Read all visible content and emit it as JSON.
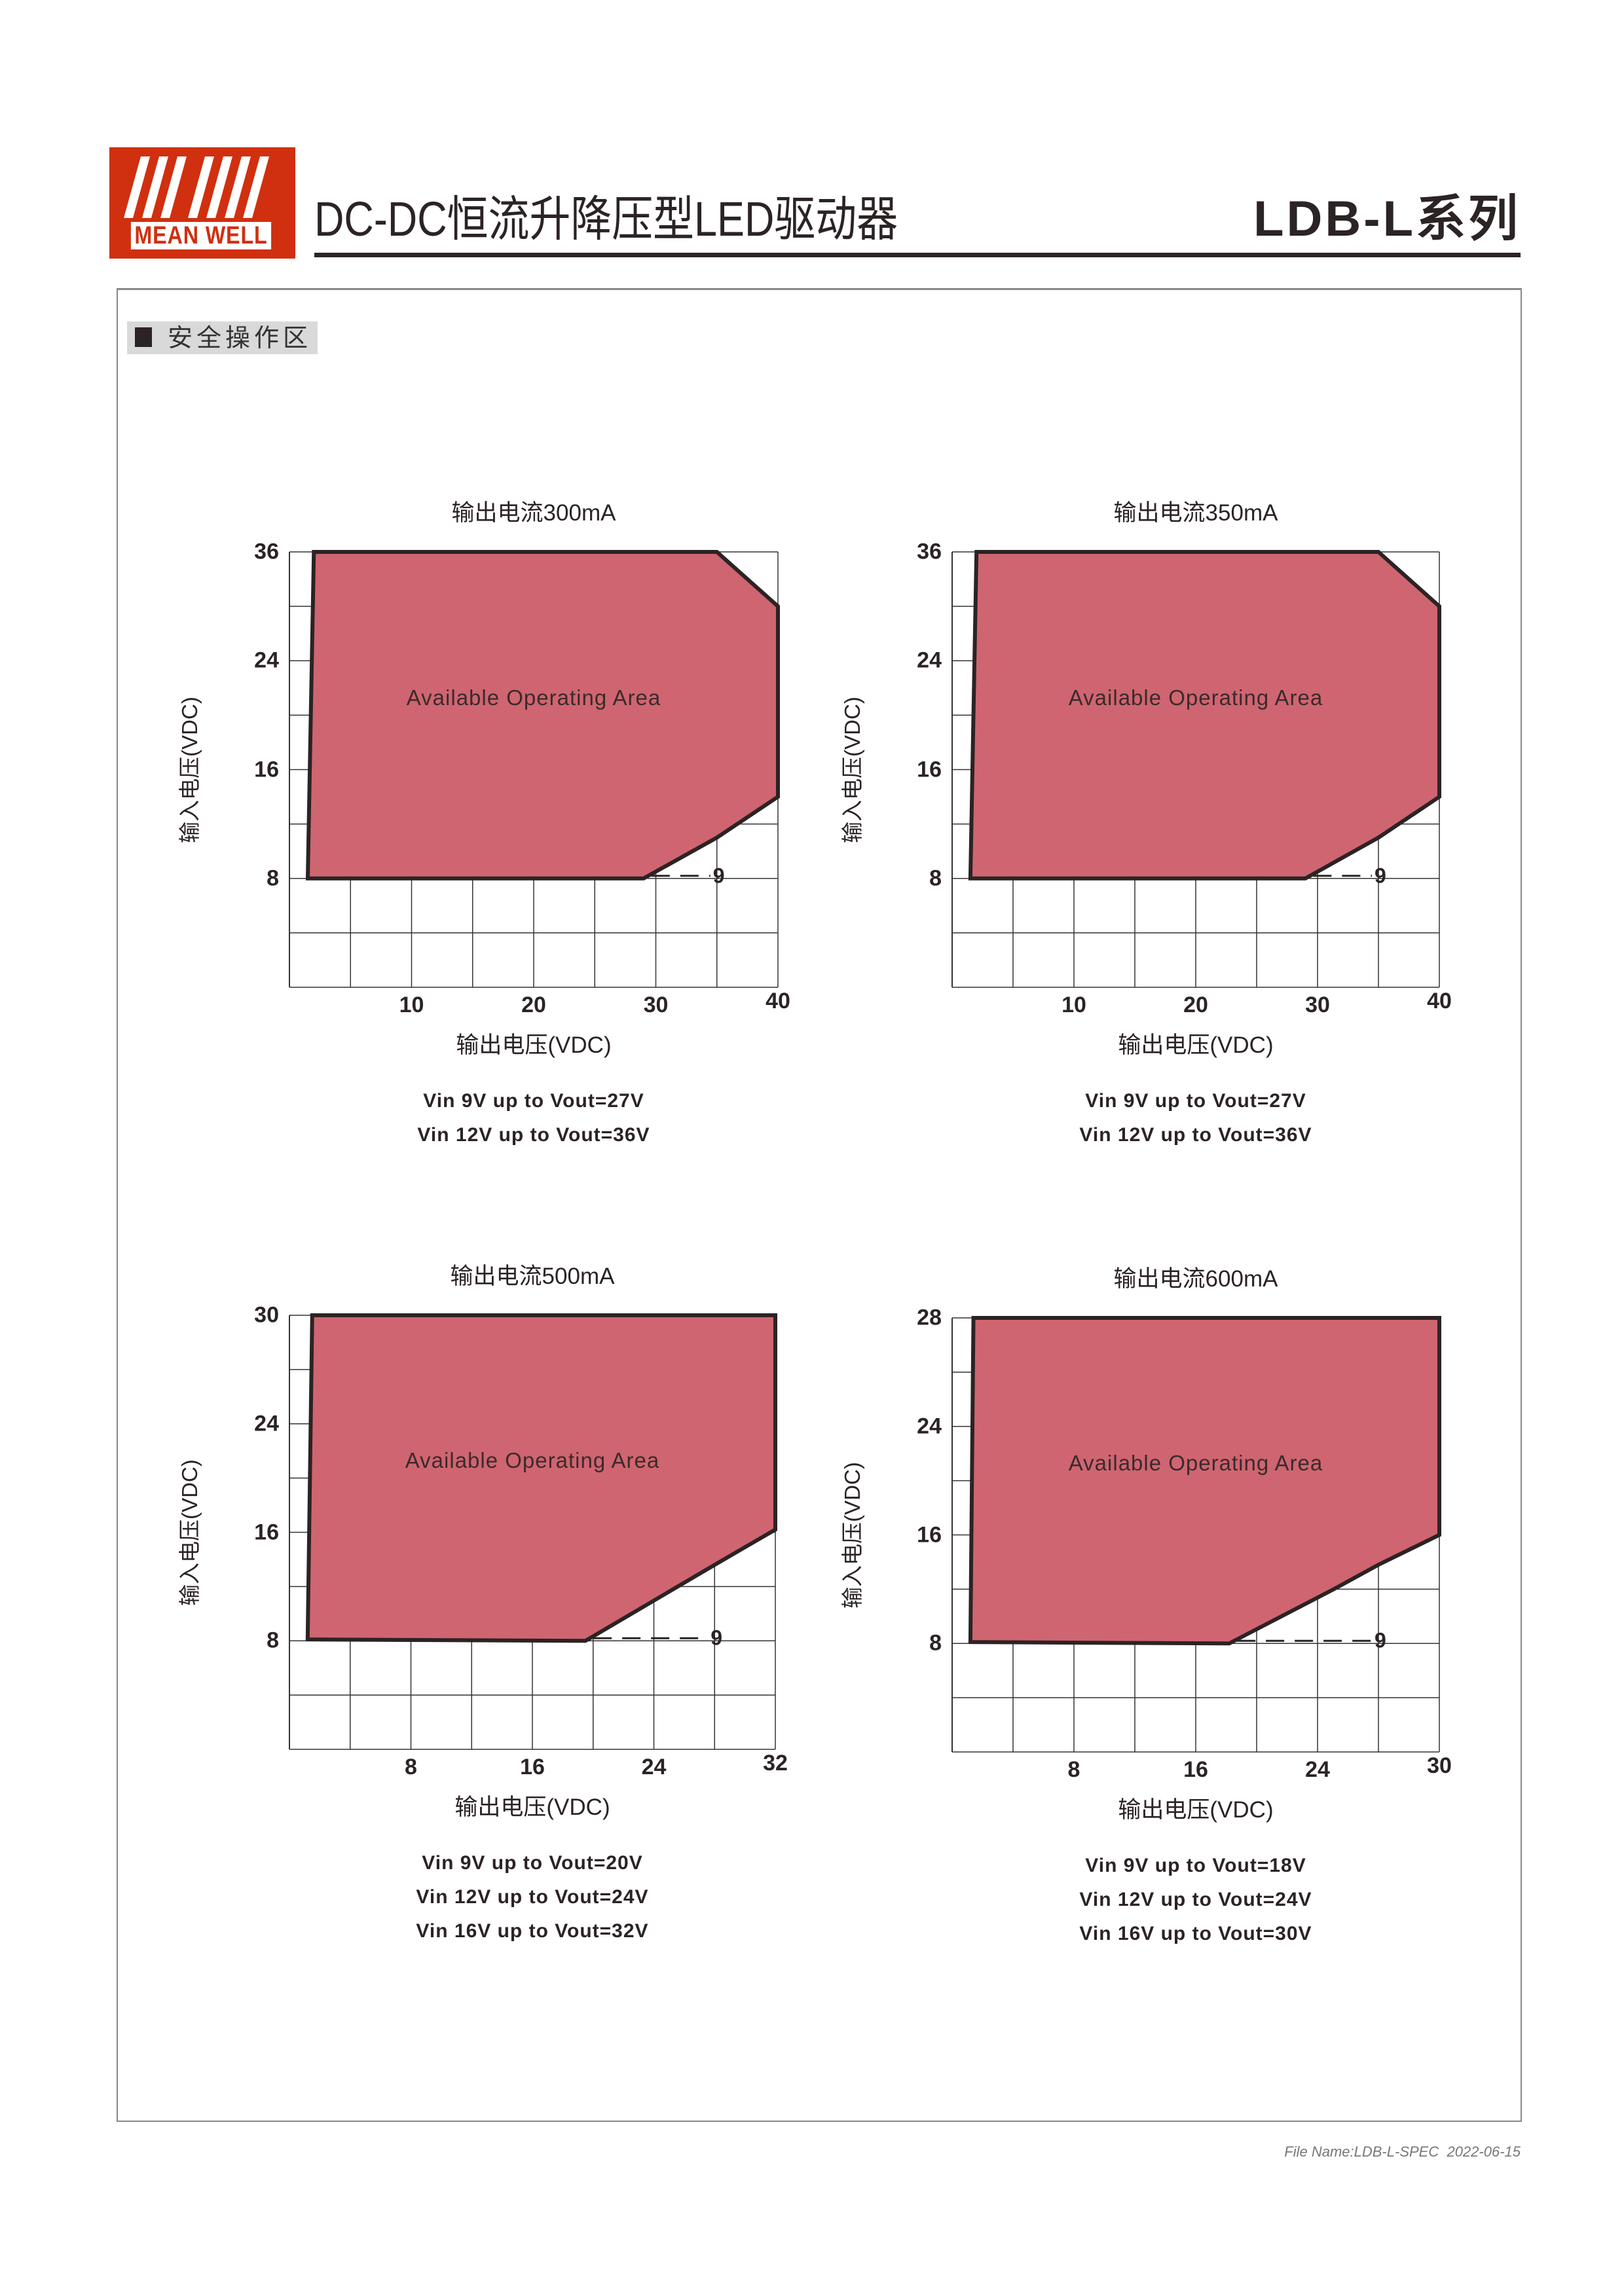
{
  "header": {
    "logo_text": "MEAN WELL",
    "title": "DC-DC恒流升降压型LED驱动器",
    "series": "LDB-L系列"
  },
  "section": {
    "label": "安全操作区"
  },
  "colors": {
    "brand": "#d0300f",
    "area_fill": "#cf6570",
    "outline": "#2b2324"
  },
  "chart_data": [
    {
      "type": "area",
      "title": "输出电流300mA",
      "xlabel": "输出电压(VDC)",
      "ylabel": "输入电压(VDC)",
      "x_ticks": [
        "10",
        "20",
        "30",
        "40"
      ],
      "y_ticks": [
        "8",
        "16",
        "24",
        "36"
      ],
      "xlim": [
        0,
        40
      ],
      "ylim": [
        0,
        36
      ],
      "grid": true,
      "area_label": "Available Operating Area",
      "polygon": [
        [
          2,
          36
        ],
        [
          35,
          36
        ],
        [
          40,
          30
        ],
        [
          40,
          14
        ],
        [
          35,
          11
        ],
        [
          29,
          8
        ],
        [
          1.5,
          8
        ]
      ],
      "annotation": "9",
      "notes": [
        "Vin 9V up to Vout=27V",
        "Vin 12V up to Vout=36V"
      ]
    },
    {
      "type": "area",
      "title": "输出电流350mA",
      "xlabel": "输出电压(VDC)",
      "ylabel": "输入电压(VDC)",
      "x_ticks": [
        "10",
        "20",
        "30",
        "40"
      ],
      "y_ticks": [
        "8",
        "16",
        "24",
        "36"
      ],
      "xlim": [
        0,
        40
      ],
      "ylim": [
        0,
        36
      ],
      "grid": true,
      "area_label": "Available Operating Area",
      "polygon": [
        [
          2,
          36
        ],
        [
          35,
          36
        ],
        [
          40,
          30
        ],
        [
          40,
          14
        ],
        [
          35,
          11
        ],
        [
          29,
          8
        ],
        [
          1.5,
          8
        ]
      ],
      "annotation": "9",
      "notes": [
        "Vin 9V up to Vout=27V",
        "Vin 12V up to Vout=36V"
      ]
    },
    {
      "type": "area",
      "title": "输出电流500mA",
      "xlabel": "输出电压(VDC)",
      "ylabel": "输入电压(VDC)",
      "x_ticks": [
        "8",
        "16",
        "24",
        "32"
      ],
      "y_ticks": [
        "8",
        "16",
        "24",
        "30"
      ],
      "xlim": [
        0,
        32
      ],
      "ylim": [
        0,
        30
      ],
      "grid": true,
      "area_label": "Available Operating Area",
      "polygon": [
        [
          1.5,
          30
        ],
        [
          32,
          30
        ],
        [
          32,
          16.2
        ],
        [
          28,
          13.6
        ],
        [
          19.5,
          8
        ],
        [
          1.2,
          8.1
        ]
      ],
      "annotation": "9",
      "notes": [
        "Vin 9V up to Vout=20V",
        "Vin 12V up to Vout=24V",
        "Vin 16V up to Vout=32V"
      ]
    },
    {
      "type": "area",
      "title": "输出电流600mA",
      "xlabel": "输出电压(VDC)",
      "ylabel": "输入电压(VDC)",
      "x_ticks": [
        "8",
        "16",
        "24",
        "30"
      ],
      "y_ticks": [
        "8",
        "16",
        "24",
        "28"
      ],
      "xlim": [
        0,
        30
      ],
      "ylim": [
        0,
        28
      ],
      "grid": true,
      "area_label": "Available Operating Area",
      "polygon": [
        [
          1.4,
          28
        ],
        [
          30,
          28
        ],
        [
          30,
          16
        ],
        [
          27,
          13.8
        ],
        [
          24.8,
          12
        ],
        [
          18.2,
          8
        ],
        [
          1.2,
          8.1
        ]
      ],
      "annotation": "9",
      "notes": [
        "Vin 9V up to Vout=18V",
        "Vin 12V up to Vout=24V",
        "Vin 16V up to Vout=30V"
      ]
    }
  ],
  "footer": {
    "text": "File Name:LDB-L-SPEC  2022-06-15"
  }
}
